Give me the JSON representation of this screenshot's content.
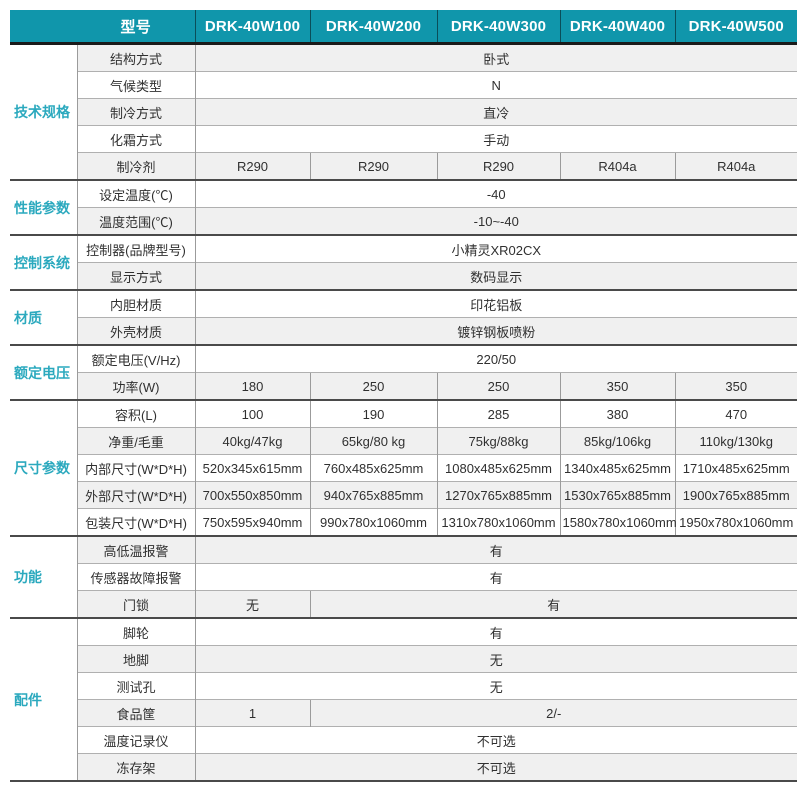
{
  "palette": {
    "header_bg": "#1096AB",
    "header_text": "#FFFFFF",
    "header_sep": "#0A4E59",
    "header_underline": "#1A1A1A",
    "category_text": "#2BA9BE",
    "cell_text": "#303030",
    "stripe_bg": "#F0F0F0",
    "row_line": "#B0B0B0",
    "col_line": "#9B9B9B",
    "section_line": "#4A4A4A"
  },
  "header": {
    "model_label": "型号",
    "models": [
      "DRK-40W100",
      "DRK-40W200",
      "DRK-40W300",
      "DRK-40W400",
      "DRK-40W500"
    ]
  },
  "sections": [
    {
      "category": "技术规格",
      "rows": [
        {
          "label": "结构方式",
          "cells": [
            {
              "span": 5,
              "text": "卧式"
            }
          ]
        },
        {
          "label": "气候类型",
          "cells": [
            {
              "span": 5,
              "text": "N"
            }
          ]
        },
        {
          "label": "制冷方式",
          "cells": [
            {
              "span": 5,
              "text": "直冷"
            }
          ]
        },
        {
          "label": "化霜方式",
          "cells": [
            {
              "span": 5,
              "text": "手动"
            }
          ]
        },
        {
          "label": "制冷剂",
          "cells": [
            {
              "span": 1,
              "text": "R290"
            },
            {
              "span": 1,
              "text": "R290"
            },
            {
              "span": 1,
              "text": "R290"
            },
            {
              "span": 1,
              "text": "R404a"
            },
            {
              "span": 1,
              "text": "R404a"
            }
          ]
        }
      ]
    },
    {
      "category": "性能参数",
      "rows": [
        {
          "label": "设定温度(℃)",
          "cells": [
            {
              "span": 5,
              "text": "-40"
            }
          ]
        },
        {
          "label": "温度范围(℃)",
          "cells": [
            {
              "span": 5,
              "text": "-10~-40"
            }
          ]
        }
      ]
    },
    {
      "category": "控制系统",
      "rows": [
        {
          "label": "控制器(品牌型号)",
          "cells": [
            {
              "span": 5,
              "text": "小精灵XR02CX"
            }
          ]
        },
        {
          "label": "显示方式",
          "cells": [
            {
              "span": 5,
              "text": "数码显示"
            }
          ]
        }
      ]
    },
    {
      "category": "材质",
      "rows": [
        {
          "label": "内胆材质",
          "cells": [
            {
              "span": 5,
              "text": "印花铝板"
            }
          ]
        },
        {
          "label": "外壳材质",
          "cells": [
            {
              "span": 5,
              "text": "镀锌钢板喷粉"
            }
          ]
        }
      ]
    },
    {
      "category": "额定电压",
      "rows": [
        {
          "label": "额定电压(V/Hz)",
          "cells": [
            {
              "span": 5,
              "text": "220/50"
            }
          ]
        },
        {
          "label": "功率(W)",
          "cells": [
            {
              "span": 1,
              "text": "180"
            },
            {
              "span": 1,
              "text": "250"
            },
            {
              "span": 1,
              "text": "250"
            },
            {
              "span": 1,
              "text": "350"
            },
            {
              "span": 1,
              "text": "350"
            }
          ]
        }
      ]
    },
    {
      "category": "尺寸参数",
      "rows": [
        {
          "label": "容积(L)",
          "cells": [
            {
              "span": 1,
              "text": "100"
            },
            {
              "span": 1,
              "text": "190"
            },
            {
              "span": 1,
              "text": "285"
            },
            {
              "span": 1,
              "text": "380"
            },
            {
              "span": 1,
              "text": "470"
            }
          ]
        },
        {
          "label": "净重/毛重",
          "cells": [
            {
              "span": 1,
              "text": "40kg/47kg"
            },
            {
              "span": 1,
              "text": "65kg/80 kg"
            },
            {
              "span": 1,
              "text": "75kg/88kg"
            },
            {
              "span": 1,
              "text": "85kg/106kg"
            },
            {
              "span": 1,
              "text": "110kg/130kg"
            }
          ]
        },
        {
          "label": "内部尺寸(W*D*H)",
          "cells": [
            {
              "span": 1,
              "text": "520x345x615mm"
            },
            {
              "span": 1,
              "text": "760x485x625mm"
            },
            {
              "span": 1,
              "text": "1080x485x625mm"
            },
            {
              "span": 1,
              "text": "1340x485x625mm"
            },
            {
              "span": 1,
              "text": "1710x485x625mm"
            }
          ]
        },
        {
          "label": "外部尺寸(W*D*H)",
          "cells": [
            {
              "span": 1,
              "text": "700x550x850mm"
            },
            {
              "span": 1,
              "text": "940x765x885mm"
            },
            {
              "span": 1,
              "text": "1270x765x885mm"
            },
            {
              "span": 1,
              "text": "1530x765x885mm"
            },
            {
              "span": 1,
              "text": "1900x765x885mm"
            }
          ]
        },
        {
          "label": "包装尺寸(W*D*H)",
          "cells": [
            {
              "span": 1,
              "text": "750x595x940mm"
            },
            {
              "span": 1,
              "text": "990x780x1060mm"
            },
            {
              "span": 1,
              "text": "1310x780x1060mm"
            },
            {
              "span": 1,
              "text": "1580x780x1060mm"
            },
            {
              "span": 1,
              "text": "1950x780x1060mm"
            }
          ]
        }
      ]
    },
    {
      "category": "功能",
      "rows": [
        {
          "label": "高低温报警",
          "cells": [
            {
              "span": 5,
              "text": "有"
            }
          ]
        },
        {
          "label": "传感器故障报警",
          "cells": [
            {
              "span": 5,
              "text": "有"
            }
          ]
        },
        {
          "label": "门锁",
          "cells": [
            {
              "span": 1,
              "text": "无"
            },
            {
              "span": 4,
              "text": "有"
            }
          ]
        }
      ]
    },
    {
      "category": "配件",
      "rows": [
        {
          "label": "脚轮",
          "cells": [
            {
              "span": 5,
              "text": "有"
            }
          ]
        },
        {
          "label": "地脚",
          "cells": [
            {
              "span": 5,
              "text": "无"
            }
          ]
        },
        {
          "label": "测试孔",
          "cells": [
            {
              "span": 5,
              "text": "无"
            }
          ]
        },
        {
          "label": "食品筐",
          "cells": [
            {
              "span": 1,
              "text": "1"
            },
            {
              "span": 4,
              "text": "2/-"
            }
          ]
        },
        {
          "label": "温度记录仪",
          "cells": [
            {
              "span": 5,
              "text": "不可选"
            }
          ]
        },
        {
          "label": "冻存架",
          "cells": [
            {
              "span": 5,
              "text": "不可选"
            }
          ]
        }
      ]
    }
  ]
}
